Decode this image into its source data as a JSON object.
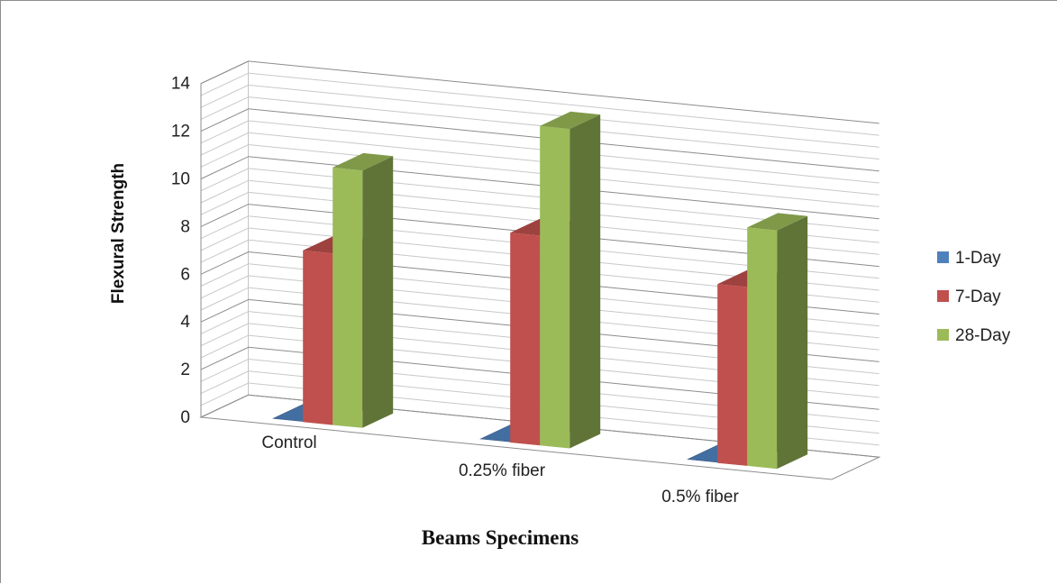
{
  "chart_data": {
    "type": "bar",
    "style": "3d-column",
    "title": "",
    "xlabel": "Beams Specimens",
    "ylabel": "Flexural Strength",
    "ylim": [
      0,
      14
    ],
    "yticks": [
      "0",
      "2",
      "4",
      "6",
      "8",
      "10",
      "12",
      "14"
    ],
    "categories": [
      "Control",
      "0.25% fiber",
      "0.5% fiber"
    ],
    "series": [
      {
        "name": "1-Day",
        "values": [
          0,
          0,
          0
        ],
        "color": "#4f81bd"
      },
      {
        "name": "7-Day",
        "values": [
          7.2,
          8.8,
          7.5
        ],
        "color": "#c0504d"
      },
      {
        "name": "28-Day",
        "values": [
          10.8,
          13.4,
          10.0
        ],
        "color": "#9bbb59"
      }
    ],
    "grid": true,
    "legend_position": "right"
  }
}
